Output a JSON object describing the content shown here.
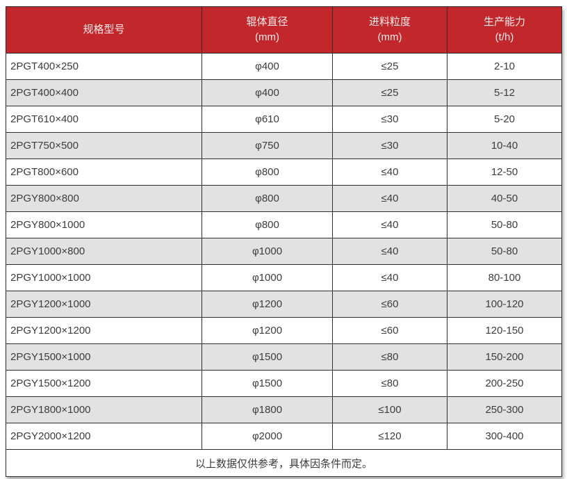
{
  "table": {
    "columns": [
      {
        "label": "规格型号",
        "sub": ""
      },
      {
        "label": "辊体直径",
        "sub": "(mm)"
      },
      {
        "label": "进料粒度",
        "sub": "(mm)"
      },
      {
        "label": "生产能力",
        "sub": "(t/h)"
      }
    ],
    "rows": [
      [
        "2PGT400×250",
        "φ400",
        "≤25",
        "2-10"
      ],
      [
        "2PGT400×400",
        "φ400",
        "≤25",
        "5-12"
      ],
      [
        "2PGT610×400",
        "φ610",
        "≤30",
        "5-20"
      ],
      [
        "2PGT750×500",
        "φ750",
        "≤30",
        "10-40"
      ],
      [
        "2PGT800×600",
        "φ800",
        "≤40",
        "12-50"
      ],
      [
        "2PGY800×800",
        "φ800",
        "≤40",
        "40-50"
      ],
      [
        "2PGY800×1000",
        "φ800",
        "≤40",
        "50-80"
      ],
      [
        "2PGY1000×800",
        "φ1000",
        "≤40",
        "50-80"
      ],
      [
        "2PGY1000×1000",
        "φ1000",
        "≤40",
        "80-100"
      ],
      [
        "2PGY1200×1000",
        "φ1200",
        "≤60",
        "100-120"
      ],
      [
        "2PGY1200×1200",
        "φ1200",
        "≤60",
        "120-150"
      ],
      [
        "2PGY1500×1000",
        "φ1500",
        "≤80",
        "150-200"
      ],
      [
        "2PGY1500×1200",
        "φ1500",
        "≤80",
        "200-250"
      ],
      [
        "2PGY1800×1000",
        "φ1800",
        "≤100",
        "250-300"
      ],
      [
        "2PGY2000×1200",
        "φ2000",
        "≤120",
        "300-400"
      ]
    ],
    "footer_note": "以上数据仅供参考，具体因条件而定。"
  },
  "colors": {
    "header_bg": "#C1272B",
    "header_text": "#F6EDED",
    "row_alt_bg": "#E2E2E2",
    "row_bg": "#FFFFFF",
    "border": "#2E2E2E",
    "body_text": "#3C3C3C"
  }
}
